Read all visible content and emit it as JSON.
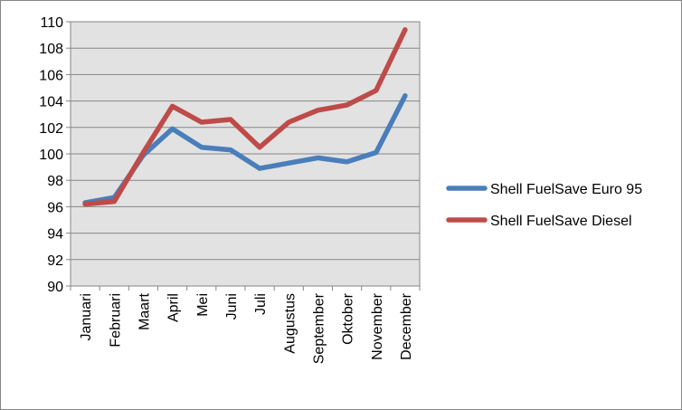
{
  "chart_data": {
    "type": "line",
    "title": "",
    "xlabel": "",
    "ylabel": "",
    "categories": [
      "Januari",
      "Februari",
      "Maart",
      "April",
      "Mei",
      "Juni",
      "Juli",
      "Augustus",
      "September",
      "Oktober",
      "November",
      "December"
    ],
    "ylim": [
      90,
      110
    ],
    "yticks": [
      90,
      92,
      94,
      96,
      98,
      100,
      102,
      104,
      106,
      108,
      110
    ],
    "grid": "horizontal",
    "legend_position": "right",
    "series": [
      {
        "name": "Shell FuelSave Euro 95",
        "color": "#4a7ebb",
        "values": [
          96.3,
          96.7,
          99.9,
          101.9,
          100.5,
          100.3,
          98.9,
          99.3,
          99.7,
          99.4,
          100.1,
          104.4
        ]
      },
      {
        "name": "Shell FuelSave Diesel",
        "color": "#be4b48",
        "values": [
          96.2,
          96.4,
          100.1,
          103.6,
          102.4,
          102.6,
          100.5,
          102.4,
          103.3,
          103.7,
          104.8,
          109.4
        ]
      }
    ]
  }
}
